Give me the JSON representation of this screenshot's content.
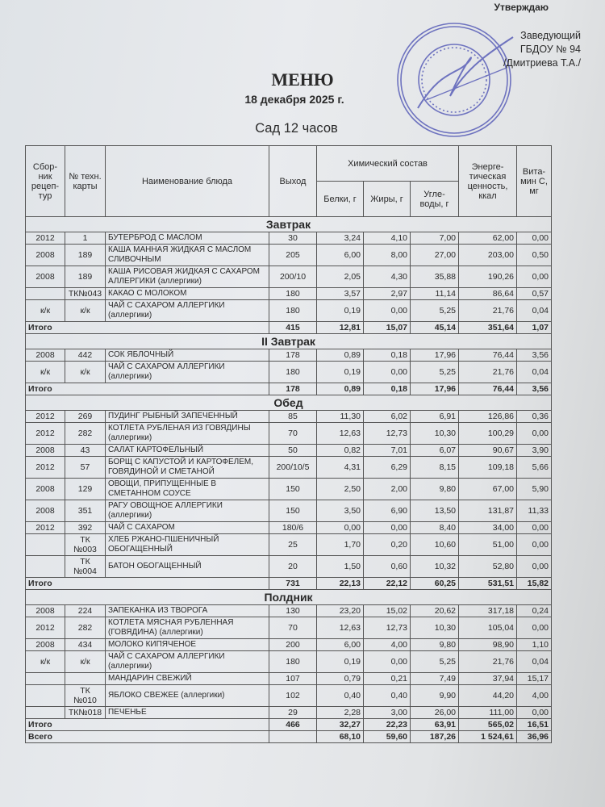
{
  "approval": {
    "label": "Утверждаю",
    "position": "Заведующий",
    "org": "ГБДОУ № 94",
    "signatory": "/Дмитриева Т.А./"
  },
  "stamp": {
    "text": "ПРАВИТЕЛЬСТВО САНКТ-ПЕТЕРБУРГА КОМИТЕТ ПО ОБРАЗОВАНИЮ",
    "color": "#5a5fb8"
  },
  "title": "МЕНЮ",
  "date": "18 декабря 2025 г.",
  "subtitle": "Сад 12 часов",
  "headers": {
    "book": "Сбор-ник рецеп-тур",
    "card": "№ техн. карты",
    "name": "Наименование блюда",
    "yield": "Выход",
    "chem": "Химический состав",
    "protein": "Белки, г",
    "fat": "Жиры, г",
    "carbs": "Угле-воды, г",
    "kcal": "Энерге-тическая ценность, ккал",
    "vitc": "Вита-мин С, мг"
  },
  "total_label": "Итого",
  "grand_total": {
    "label": "Всего",
    "yield": "",
    "protein": "68,10",
    "fat": "59,60",
    "carbs": "187,26",
    "kcal": "1 524,61",
    "vitc": "36,96"
  },
  "sections": [
    {
      "title": "Завтрак",
      "rows": [
        [
          "2012",
          "1",
          "БУТЕРБРОД С МАСЛОМ",
          "30",
          "3,24",
          "4,10",
          "7,00",
          "62,00",
          "0,00"
        ],
        [
          "2008",
          "189",
          "КАША МАННАЯ ЖИДКАЯ С МАСЛОМ СЛИВОЧНЫМ",
          "205",
          "6,00",
          "8,00",
          "27,00",
          "203,00",
          "0,50"
        ],
        [
          "2008",
          "189",
          "КАША РИСОВАЯ  ЖИДКАЯ С САХАРОМ АЛЛЕРГИКИ (аллергики)",
          "200/10",
          "2,05",
          "4,30",
          "35,88",
          "190,26",
          "0,00"
        ],
        [
          "",
          "ТК№043",
          "КАКАО С МОЛОКОМ",
          "180",
          "3,57",
          "2,97",
          "11,14",
          "86,64",
          "0,57"
        ],
        [
          "к/к",
          "к/к",
          "ЧАЙ С САХАРОМ АЛЛЕРГИКИ (аллергики)",
          "180",
          "0,19",
          "0,00",
          "5,25",
          "21,76",
          "0,04"
        ]
      ],
      "total": [
        "415",
        "12,81",
        "15,07",
        "45,14",
        "351,64",
        "1,07"
      ]
    },
    {
      "title": "II Завтрак",
      "rows": [
        [
          "2008",
          "442",
          "СОК ЯБЛОЧНЫЙ",
          "178",
          "0,89",
          "0,18",
          "17,96",
          "76,44",
          "3,56"
        ],
        [
          "к/к",
          "к/к",
          "ЧАЙ С САХАРОМ АЛЛЕРГИКИ (аллергики)",
          "180",
          "0,19",
          "0,00",
          "5,25",
          "21,76",
          "0,04"
        ]
      ],
      "total": [
        "178",
        "0,89",
        "0,18",
        "17,96",
        "76,44",
        "3,56"
      ]
    },
    {
      "title": "Обед",
      "rows": [
        [
          "2012",
          "269",
          "ПУДИНГ РЫБНЫЙ ЗАПЕЧЕННЫЙ",
          "85",
          "11,30",
          "6,02",
          "6,91",
          "126,86",
          "0,36"
        ],
        [
          "2012",
          "282",
          "КОТЛЕТА РУБЛЕНАЯ ИЗ ГОВЯДИНЫ (аллергики)",
          "70",
          "12,63",
          "12,73",
          "10,30",
          "100,29",
          "0,00"
        ],
        [
          "2008",
          "43",
          "САЛАТ КАРТОФЕЛЬНЫЙ",
          "50",
          "0,82",
          "7,01",
          "6,07",
          "90,67",
          "3,90"
        ],
        [
          "2012",
          "57",
          "БОРЩ С КАПУСТОЙ И КАРТОФЕЛЕМ, ГОВЯДИНОЙ И СМЕТАНОЙ",
          "200/10/5",
          "4,31",
          "6,29",
          "8,15",
          "109,18",
          "5,66"
        ],
        [
          "2008",
          "129",
          "ОВОЩИ, ПРИПУЩЕННЫЕ В СМЕТАННОМ СОУСЕ",
          "150",
          "2,50",
          "2,00",
          "9,80",
          "67,00",
          "5,90"
        ],
        [
          "2008",
          "351",
          "РАГУ ОВОЩНОЕ АЛЛЕРГИКИ (аллергики)",
          "150",
          "3,50",
          "6,90",
          "13,50",
          "131,87",
          "11,33"
        ],
        [
          "2012",
          "392",
          "ЧАЙ С САХАРОМ",
          "180/6",
          "0,00",
          "0,00",
          "8,40",
          "34,00",
          "0,00"
        ],
        [
          "",
          "ТК №003",
          "ХЛЕБ РЖАНО-ПШЕНИЧНЫЙ ОБОГАЩЕННЫЙ",
          "25",
          "1,70",
          "0,20",
          "10,60",
          "51,00",
          "0,00"
        ],
        [
          "",
          "ТК №004",
          "БАТОН ОБОГАЩЕННЫЙ",
          "20",
          "1,50",
          "0,60",
          "10,32",
          "52,80",
          "0,00"
        ]
      ],
      "total": [
        "731",
        "22,13",
        "22,12",
        "60,25",
        "531,51",
        "15,82"
      ]
    },
    {
      "title": "Полдник",
      "rows": [
        [
          "2008",
          "224",
          "ЗАПЕКАНКА ИЗ ТВОРОГА",
          "130",
          "23,20",
          "15,02",
          "20,62",
          "317,18",
          "0,24"
        ],
        [
          "2012",
          "282",
          "КОТЛЕТА МЯСНАЯ РУБЛЕННАЯ (ГОВЯДИНА) (аллергики)",
          "70",
          "12,63",
          "12,73",
          "10,30",
          "105,04",
          "0,00"
        ],
        [
          "2008",
          "434",
          "МОЛОКО КИПЯЧЕНОЕ",
          "200",
          "6,00",
          "4,00",
          "9,80",
          "98,90",
          "1,10"
        ],
        [
          "к/к",
          "к/к",
          "ЧАЙ С САХАРОМ АЛЛЕРГИКИ (аллергики)",
          "180",
          "0,19",
          "0,00",
          "5,25",
          "21,76",
          "0,04"
        ],
        [
          "",
          "",
          "МАНДАРИН СВЕЖИЙ",
          "107",
          "0,79",
          "0,21",
          "7,49",
          "37,94",
          "15,17"
        ],
        [
          "",
          "ТК №010",
          "ЯБЛОКО СВЕЖЕЕ (аллергики)",
          "102",
          "0,40",
          "0,40",
          "9,90",
          "44,20",
          "4,00"
        ],
        [
          "",
          "ТК№018",
          "ПЕЧЕНЬЕ",
          "29",
          "2,28",
          "3,00",
          "26,00",
          "111,00",
          "0,00"
        ]
      ],
      "total": [
        "466",
        "32,27",
        "22,23",
        "63,91",
        "565,02",
        "16,51"
      ]
    }
  ]
}
